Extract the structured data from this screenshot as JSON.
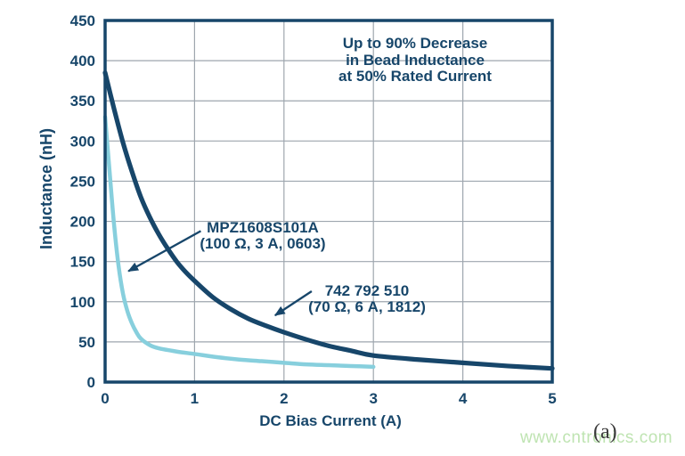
{
  "figure": {
    "panel_label": "(a)"
  },
  "watermark": {
    "text": "www.cntronics.com",
    "color": "#bfe4b2"
  },
  "colors": {
    "navy": "#17466a",
    "light_blue": "#87cfdd",
    "grid": "#9ea6ae",
    "background": "#ffffff"
  },
  "chart_data": {
    "type": "line",
    "title": "Up to 90% Decrease\nin Bead Inductance\nat 50% Rated Current",
    "xlabel": "DC Bias Current (A)",
    "ylabel": "Inductance (nH)",
    "xlim": [
      0,
      5
    ],
    "ylim": [
      0,
      450
    ],
    "x_ticks": [
      0,
      1,
      2,
      3,
      4,
      5
    ],
    "y_ticks": [
      0,
      50,
      100,
      150,
      200,
      250,
      300,
      350,
      400,
      450
    ],
    "grid": true,
    "legend": "none",
    "series": [
      {
        "id": "mpz",
        "name": "MPZ1608S101A (100 Ω, 3 A, 0603)",
        "color": "#87cfdd",
        "points": [
          [
            0,
            330
          ],
          [
            0.05,
            262
          ],
          [
            0.1,
            196
          ],
          [
            0.15,
            145
          ],
          [
            0.2,
            110
          ],
          [
            0.25,
            88
          ],
          [
            0.3,
            73
          ],
          [
            0.35,
            62
          ],
          [
            0.4,
            54
          ],
          [
            0.5,
            46
          ],
          [
            0.6,
            42
          ],
          [
            0.8,
            38
          ],
          [
            1,
            35
          ],
          [
            1.25,
            31
          ],
          [
            1.5,
            28
          ],
          [
            1.75,
            26
          ],
          [
            2,
            24
          ],
          [
            2.25,
            22
          ],
          [
            2.5,
            21
          ],
          [
            2.75,
            20
          ],
          [
            3,
            19
          ]
        ]
      },
      {
        "id": "wurth",
        "name": "742 792 510 (70 Ω, 6 A, 1812)",
        "color": "#17466a",
        "points": [
          [
            0,
            385
          ],
          [
            0.1,
            340
          ],
          [
            0.2,
            298
          ],
          [
            0.3,
            262
          ],
          [
            0.4,
            230
          ],
          [
            0.5,
            205
          ],
          [
            0.6,
            184
          ],
          [
            0.7,
            166
          ],
          [
            0.8,
            150
          ],
          [
            0.9,
            137
          ],
          [
            1,
            126
          ],
          [
            1.2,
            106
          ],
          [
            1.4,
            91
          ],
          [
            1.6,
            79
          ],
          [
            1.8,
            70
          ],
          [
            2,
            62
          ],
          [
            2.25,
            53
          ],
          [
            2.5,
            45
          ],
          [
            2.75,
            39
          ],
          [
            3,
            33
          ],
          [
            3.5,
            28
          ],
          [
            4,
            24
          ],
          [
            4.5,
            20
          ],
          [
            5,
            17
          ]
        ]
      }
    ],
    "annotations": [
      {
        "id": "mpz",
        "text": "MPZ1608S101A\n(100 Ω, 3 A, 0603)",
        "arrow": {
          "x1": 1.07,
          "y1": 188,
          "x2": 0.26,
          "y2": 138
        }
      },
      {
        "id": "wurth",
        "text": "742 792 510\n(70 Ω, 6 A, 1812)",
        "arrow": {
          "x1": 2.31,
          "y1": 113,
          "x2": 1.9,
          "y2": 83
        }
      }
    ]
  }
}
